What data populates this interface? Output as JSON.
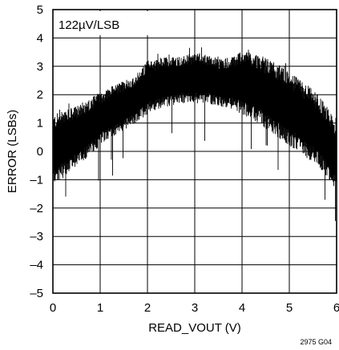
{
  "chart_data": {
    "type": "line",
    "title": "",
    "annotation": "122µV/LSB",
    "xlabel": "READ_VOUT (V)",
    "ylabel": "ERROR (LSBs)",
    "xlim": [
      0,
      6
    ],
    "ylim": [
      -5,
      5
    ],
    "x_ticks": [
      "0",
      "1",
      "2",
      "3",
      "4",
      "5",
      "6"
    ],
    "y_ticks": [
      "–5",
      "–4",
      "–3",
      "–2",
      "–1",
      "0",
      "1",
      "2",
      "3",
      "4",
      "5"
    ],
    "grid": true,
    "figure_id": "2975 G04",
    "series": [
      {
        "color": "#000000",
        "style": "dense noise band",
        "x": [
          0,
          0.25,
          0.5,
          0.75,
          1.0,
          1.25,
          1.5,
          1.75,
          2.0,
          2.25,
          2.5,
          2.75,
          3.0,
          3.25,
          3.5,
          3.75,
          4.0,
          4.25,
          4.5,
          4.75,
          5.0,
          5.25,
          5.5,
          5.75,
          6.0
        ],
        "upper": [
          1.3,
          1.45,
          1.6,
          1.85,
          2.1,
          2.3,
          2.5,
          2.7,
          3.2,
          3.3,
          3.35,
          3.35,
          3.5,
          3.4,
          3.3,
          3.3,
          3.6,
          3.5,
          3.3,
          3.1,
          2.8,
          2.5,
          2.2,
          1.7,
          1.0
        ],
        "lower": [
          -1.2,
          -0.9,
          -0.5,
          -0.2,
          0.2,
          0.5,
          0.7,
          1.0,
          1.3,
          1.5,
          1.6,
          1.7,
          1.7,
          1.7,
          1.6,
          1.5,
          1.3,
          1.1,
          0.8,
          0.5,
          0.2,
          -0.1,
          -0.4,
          -0.8,
          -1.5
        ]
      }
    ]
  }
}
